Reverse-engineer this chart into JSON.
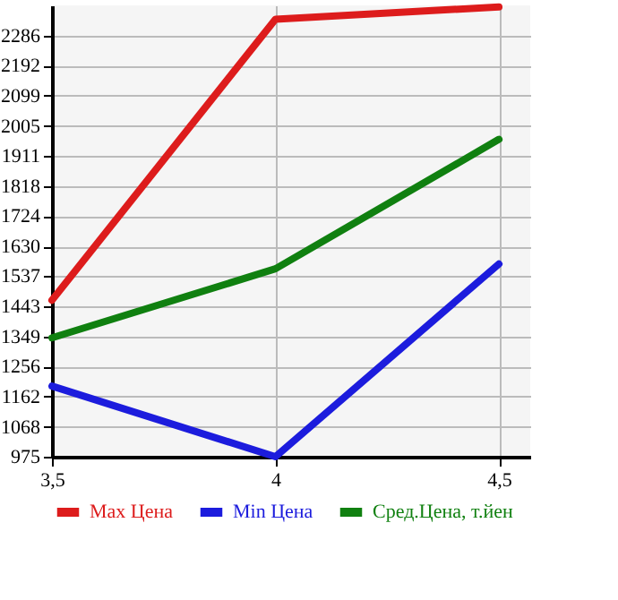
{
  "chart_data": {
    "type": "line",
    "x": [
      3.5,
      4,
      4.5
    ],
    "series": [
      {
        "name": "Max Цена",
        "color": "#dd1c1c",
        "values": [
          1462,
          2337,
          2375
        ]
      },
      {
        "name": "Min Цена",
        "color": "#1c1cdd",
        "values": [
          1195,
          975,
          1575
        ]
      },
      {
        "name": "Сред.Цена, т.йен",
        "color": "#108010",
        "values": [
          1345,
          1560,
          1963
        ]
      }
    ],
    "xlim": [
      3.5,
      4.57
    ],
    "xticks": [
      {
        "value": 3.5,
        "label": "3,5"
      },
      4,
      {
        "value": 4.5,
        "label": "4,5"
      }
    ],
    "ylim": [
      975,
      2380
    ],
    "yticks": [
      975,
      1068,
      1162,
      1256,
      1349,
      1443,
      1537,
      1630,
      1724,
      1818,
      1911,
      2005,
      2099,
      2192,
      2286
    ],
    "grid": true,
    "legend": "bottom",
    "marker": "none",
    "line_style": "solid"
  }
}
